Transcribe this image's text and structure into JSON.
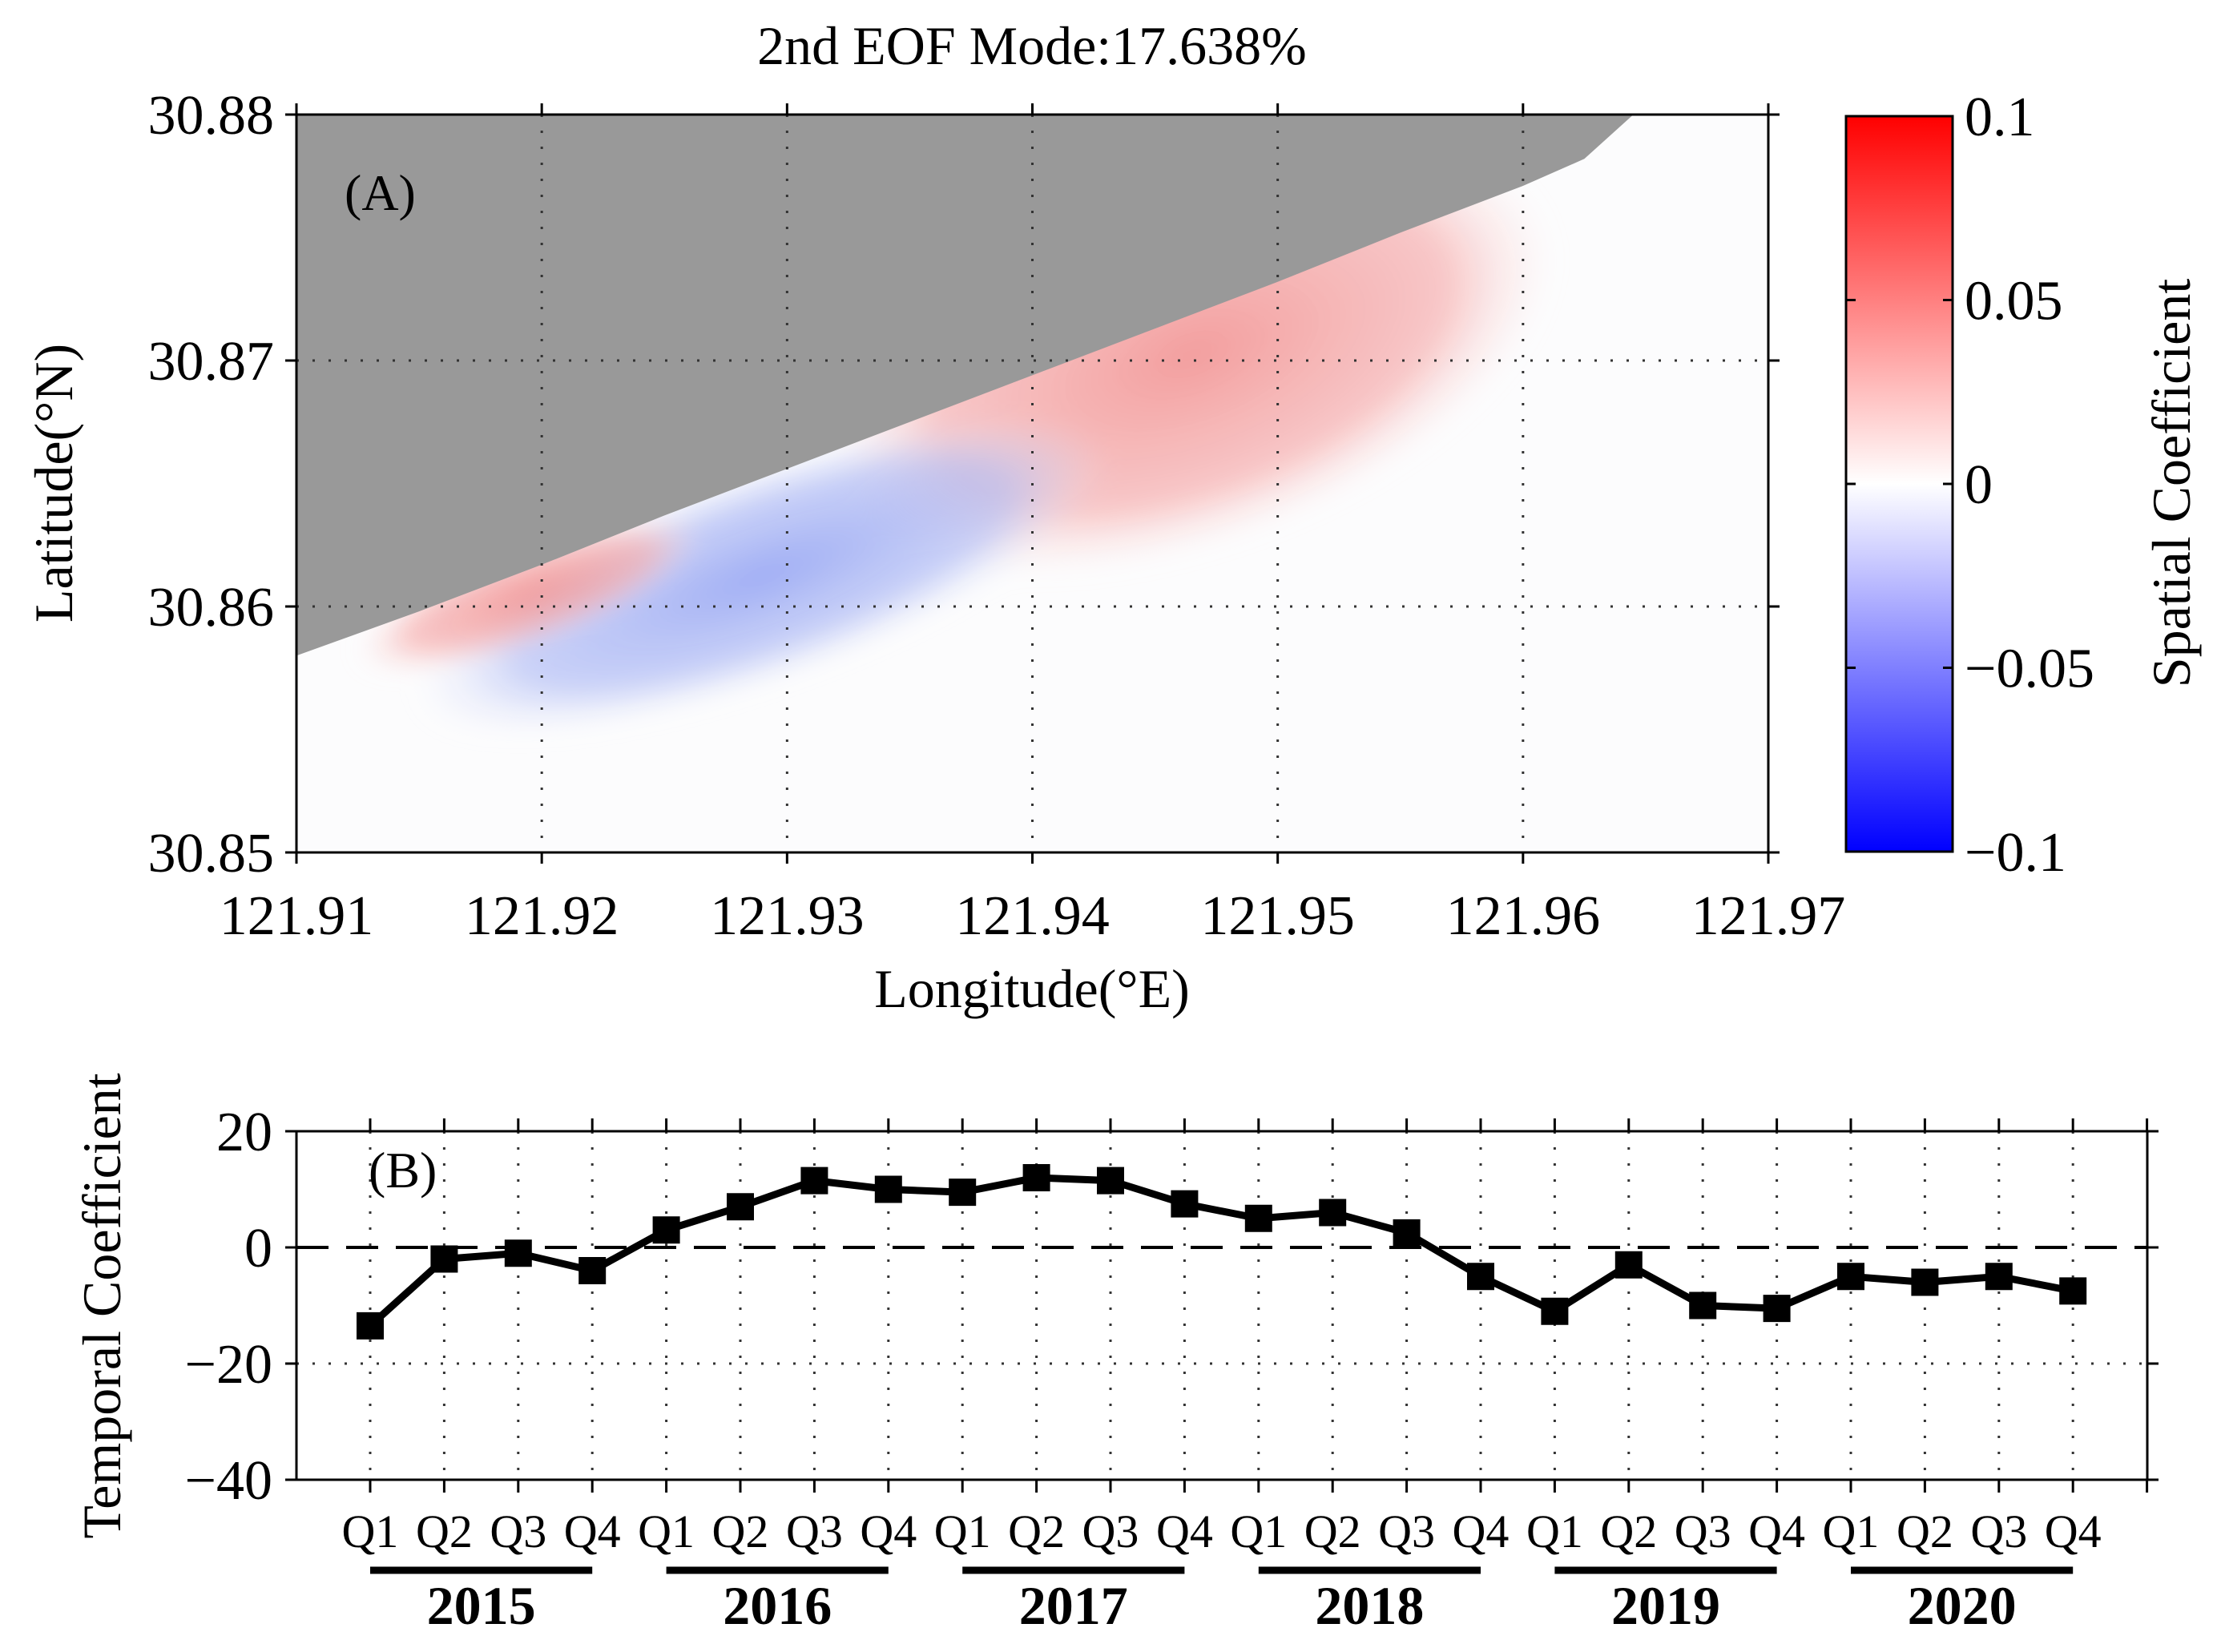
{
  "chart_data": [
    {
      "panel_label": "(A)",
      "type": "heatmap",
      "title": "2nd EOF Mode:17.638%",
      "xlabel": "Longitude(°E)",
      "ylabel": "Latitude(°N)",
      "xlim": [
        121.91,
        121.97
      ],
      "ylim": [
        30.85,
        30.88
      ],
      "x_ticks": [
        "121.91",
        "121.92",
        "121.93",
        "121.94",
        "121.95",
        "121.96",
        "121.97"
      ],
      "y_ticks": [
        "30.85",
        "30.86",
        "30.87",
        "30.88"
      ],
      "grid": true,
      "land_color": "#999999",
      "water_color": "#fcfcfd",
      "coastline": [
        [
          121.91,
          30.858
        ],
        [
          121.915,
          30.8598
        ],
        [
          121.92,
          30.8617
        ],
        [
          121.925,
          30.8637
        ],
        [
          121.93,
          30.8656
        ],
        [
          121.935,
          30.8675
        ],
        [
          121.94,
          30.8694
        ],
        [
          121.945,
          30.8713
        ],
        [
          121.95,
          30.8732
        ],
        [
          121.955,
          30.8752
        ],
        [
          121.96,
          30.8771
        ],
        [
          121.9625,
          30.8782
        ],
        [
          121.9645,
          30.88
        ]
      ],
      "colorbar": {
        "label": "Spatial Coefficient",
        "range": [
          -0.1,
          0.1
        ],
        "ticks": [
          "0.1",
          "0.05",
          "0",
          "−0.05",
          "−0.1"
        ],
        "colors": [
          "#0000ff",
          "#ffffff",
          "#ff0000"
        ]
      },
      "regions": [
        {
          "sign": "positive",
          "approx_value": 0.02,
          "lon_range": [
            121.931,
            121.962
          ],
          "lat_range": [
            30.8625,
            30.878
          ]
        },
        {
          "sign": "negative",
          "approx_value": -0.02,
          "lon_range": [
            121.914,
            121.944
          ],
          "lat_range": [
            30.857,
            30.8655
          ]
        },
        {
          "sign": "positive",
          "approx_value": 0.012,
          "lon_range": [
            121.912,
            121.927
          ],
          "lat_range": [
            30.8585,
            30.8625
          ]
        }
      ]
    },
    {
      "panel_label": "(B)",
      "type": "line",
      "xlabel": "",
      "ylabel": "Temporal Coefficient",
      "ylim": [
        -40,
        20
      ],
      "y_ticks": [
        "20",
        "0",
        "−20",
        "−40"
      ],
      "quarter_labels": [
        "Q1",
        "Q2",
        "Q3",
        "Q4"
      ],
      "years": [
        "2015",
        "2016",
        "2017",
        "2018",
        "2019",
        "2020"
      ],
      "grid": true,
      "reference_line": 0,
      "x": [
        "2015 Q1",
        "2015 Q2",
        "2015 Q3",
        "2015 Q4",
        "2016 Q1",
        "2016 Q2",
        "2016 Q3",
        "2016 Q4",
        "2017 Q1",
        "2017 Q2",
        "2017 Q3",
        "2017 Q4",
        "2018 Q1",
        "2018 Q2",
        "2018 Q3",
        "2018 Q4",
        "2019 Q1",
        "2019 Q2",
        "2019 Q3",
        "2019 Q4",
        "2020 Q1",
        "2020 Q2",
        "2020 Q3",
        "2020 Q4"
      ],
      "values": [
        -13.5,
        -2.0,
        -1.0,
        -4.0,
        3.0,
        7.0,
        11.5,
        10.0,
        9.5,
        12.0,
        11.5,
        7.5,
        5.0,
        6.0,
        2.5,
        -5.0,
        -11.0,
        -3.0,
        -10.0,
        -10.5,
        -5.0,
        -6.0,
        -5.0,
        -7.5
      ],
      "marker": "square",
      "line_color": "#000000"
    }
  ]
}
